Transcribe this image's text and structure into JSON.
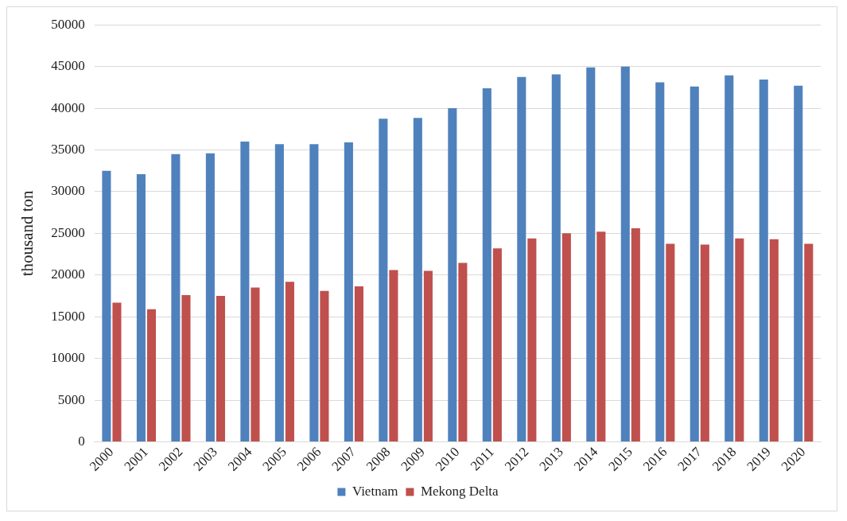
{
  "chart_data": {
    "type": "bar",
    "ylabel": "thousand ton",
    "categories": [
      "2000",
      "2001",
      "2002",
      "2003",
      "2004",
      "2005",
      "2006",
      "2007",
      "2008",
      "2009",
      "2010",
      "2011",
      "2012",
      "2013",
      "2014",
      "2015",
      "2016",
      "2017",
      "2018",
      "2019",
      "2020"
    ],
    "series": [
      {
        "name": "Vietnam",
        "color": "#4f81bd",
        "values": [
          32500,
          32100,
          34500,
          34600,
          36000,
          35700,
          35700,
          35900,
          38750,
          38850,
          40000,
          42400,
          43750,
          44050,
          44900,
          45000,
          43100,
          42600,
          43950,
          43450,
          42700
        ]
      },
      {
        "name": "Mekong Delta",
        "color": "#c0504d",
        "values": [
          16700,
          15900,
          17600,
          17500,
          18500,
          19200,
          18100,
          18650,
          20600,
          20500,
          21450,
          23200,
          24400,
          25000,
          25200,
          25600,
          23750,
          23650,
          24400,
          24300,
          23750
        ]
      }
    ],
    "ylim": [
      0,
      50000
    ],
    "yticks": [
      0,
      5000,
      10000,
      15000,
      20000,
      25000,
      30000,
      35000,
      40000,
      45000,
      50000
    ],
    "grid": "y",
    "legend": "bottom"
  }
}
